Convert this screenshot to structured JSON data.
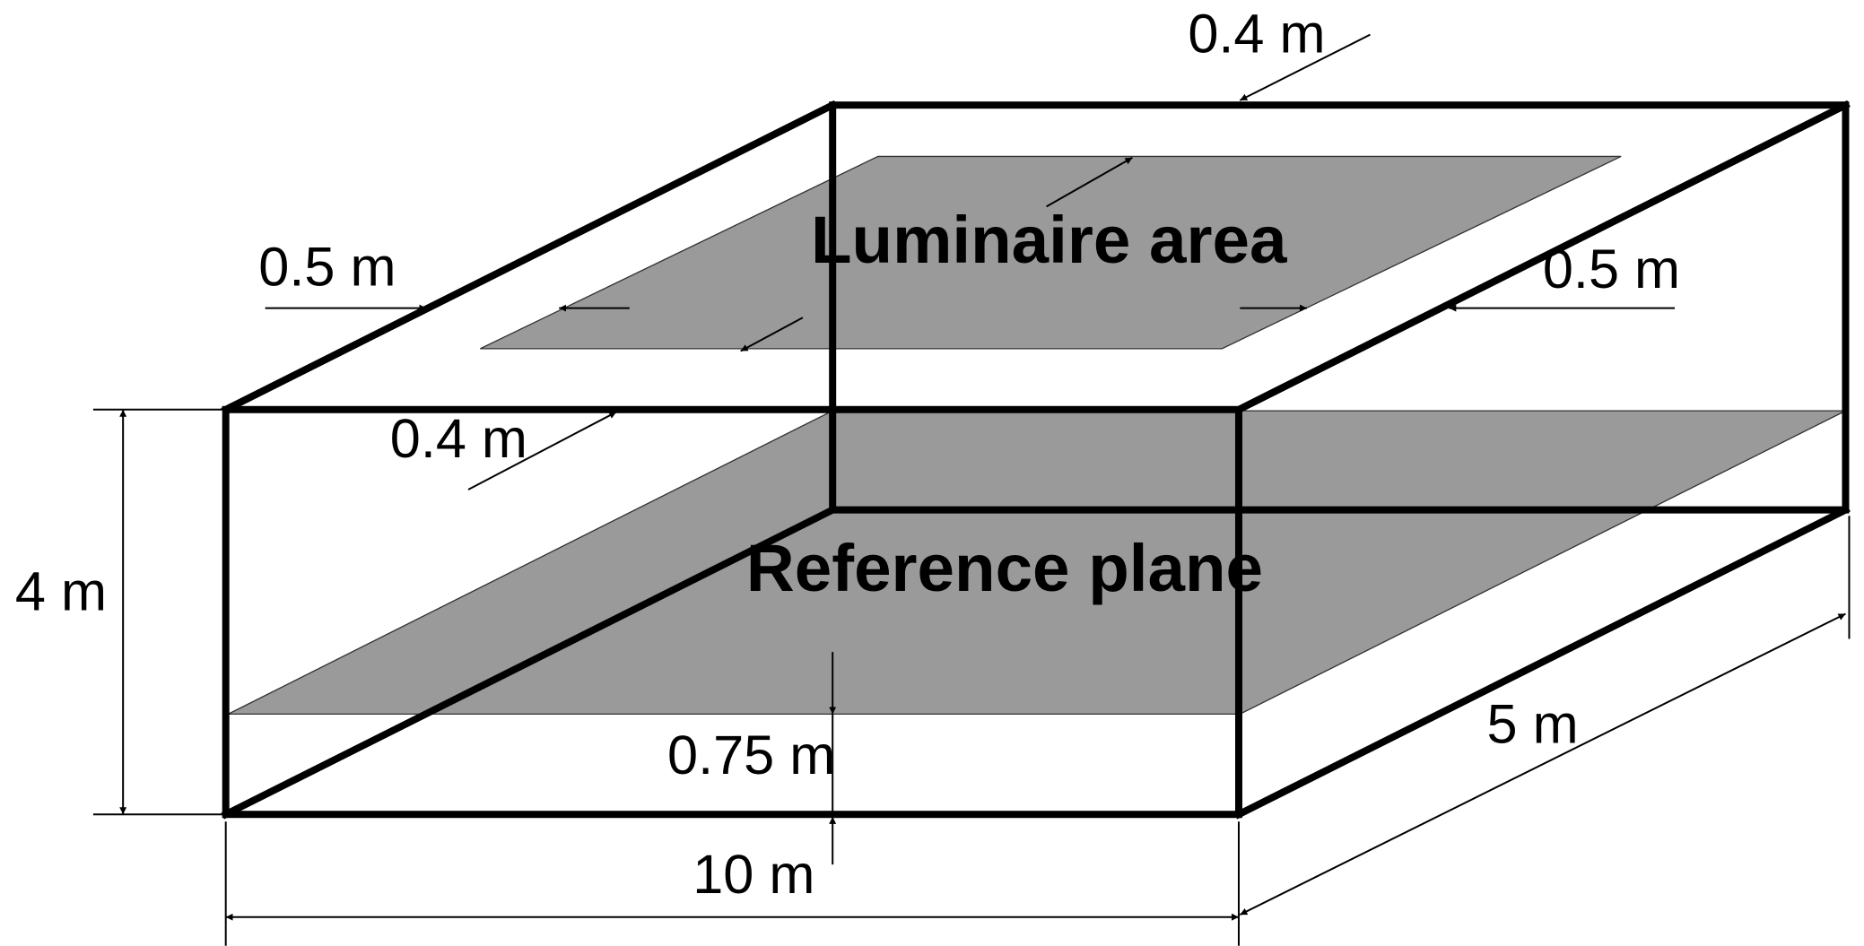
{
  "labels": {
    "luminaire_area": "Luminaire area",
    "reference_plane": "Reference plane",
    "dim_top_offset": "0.4 m",
    "dim_left_offset": "0.5 m",
    "dim_right_offset": "0.5 m",
    "dim_front_offset": "0.4 m",
    "dim_height": "4 m",
    "dim_plane_height": "0.75 m",
    "dim_length": "10 m",
    "dim_depth": "5 m"
  },
  "colors": {
    "plane_fill": "#9a9a9a",
    "edge": "#000000",
    "background": "#ffffff"
  }
}
